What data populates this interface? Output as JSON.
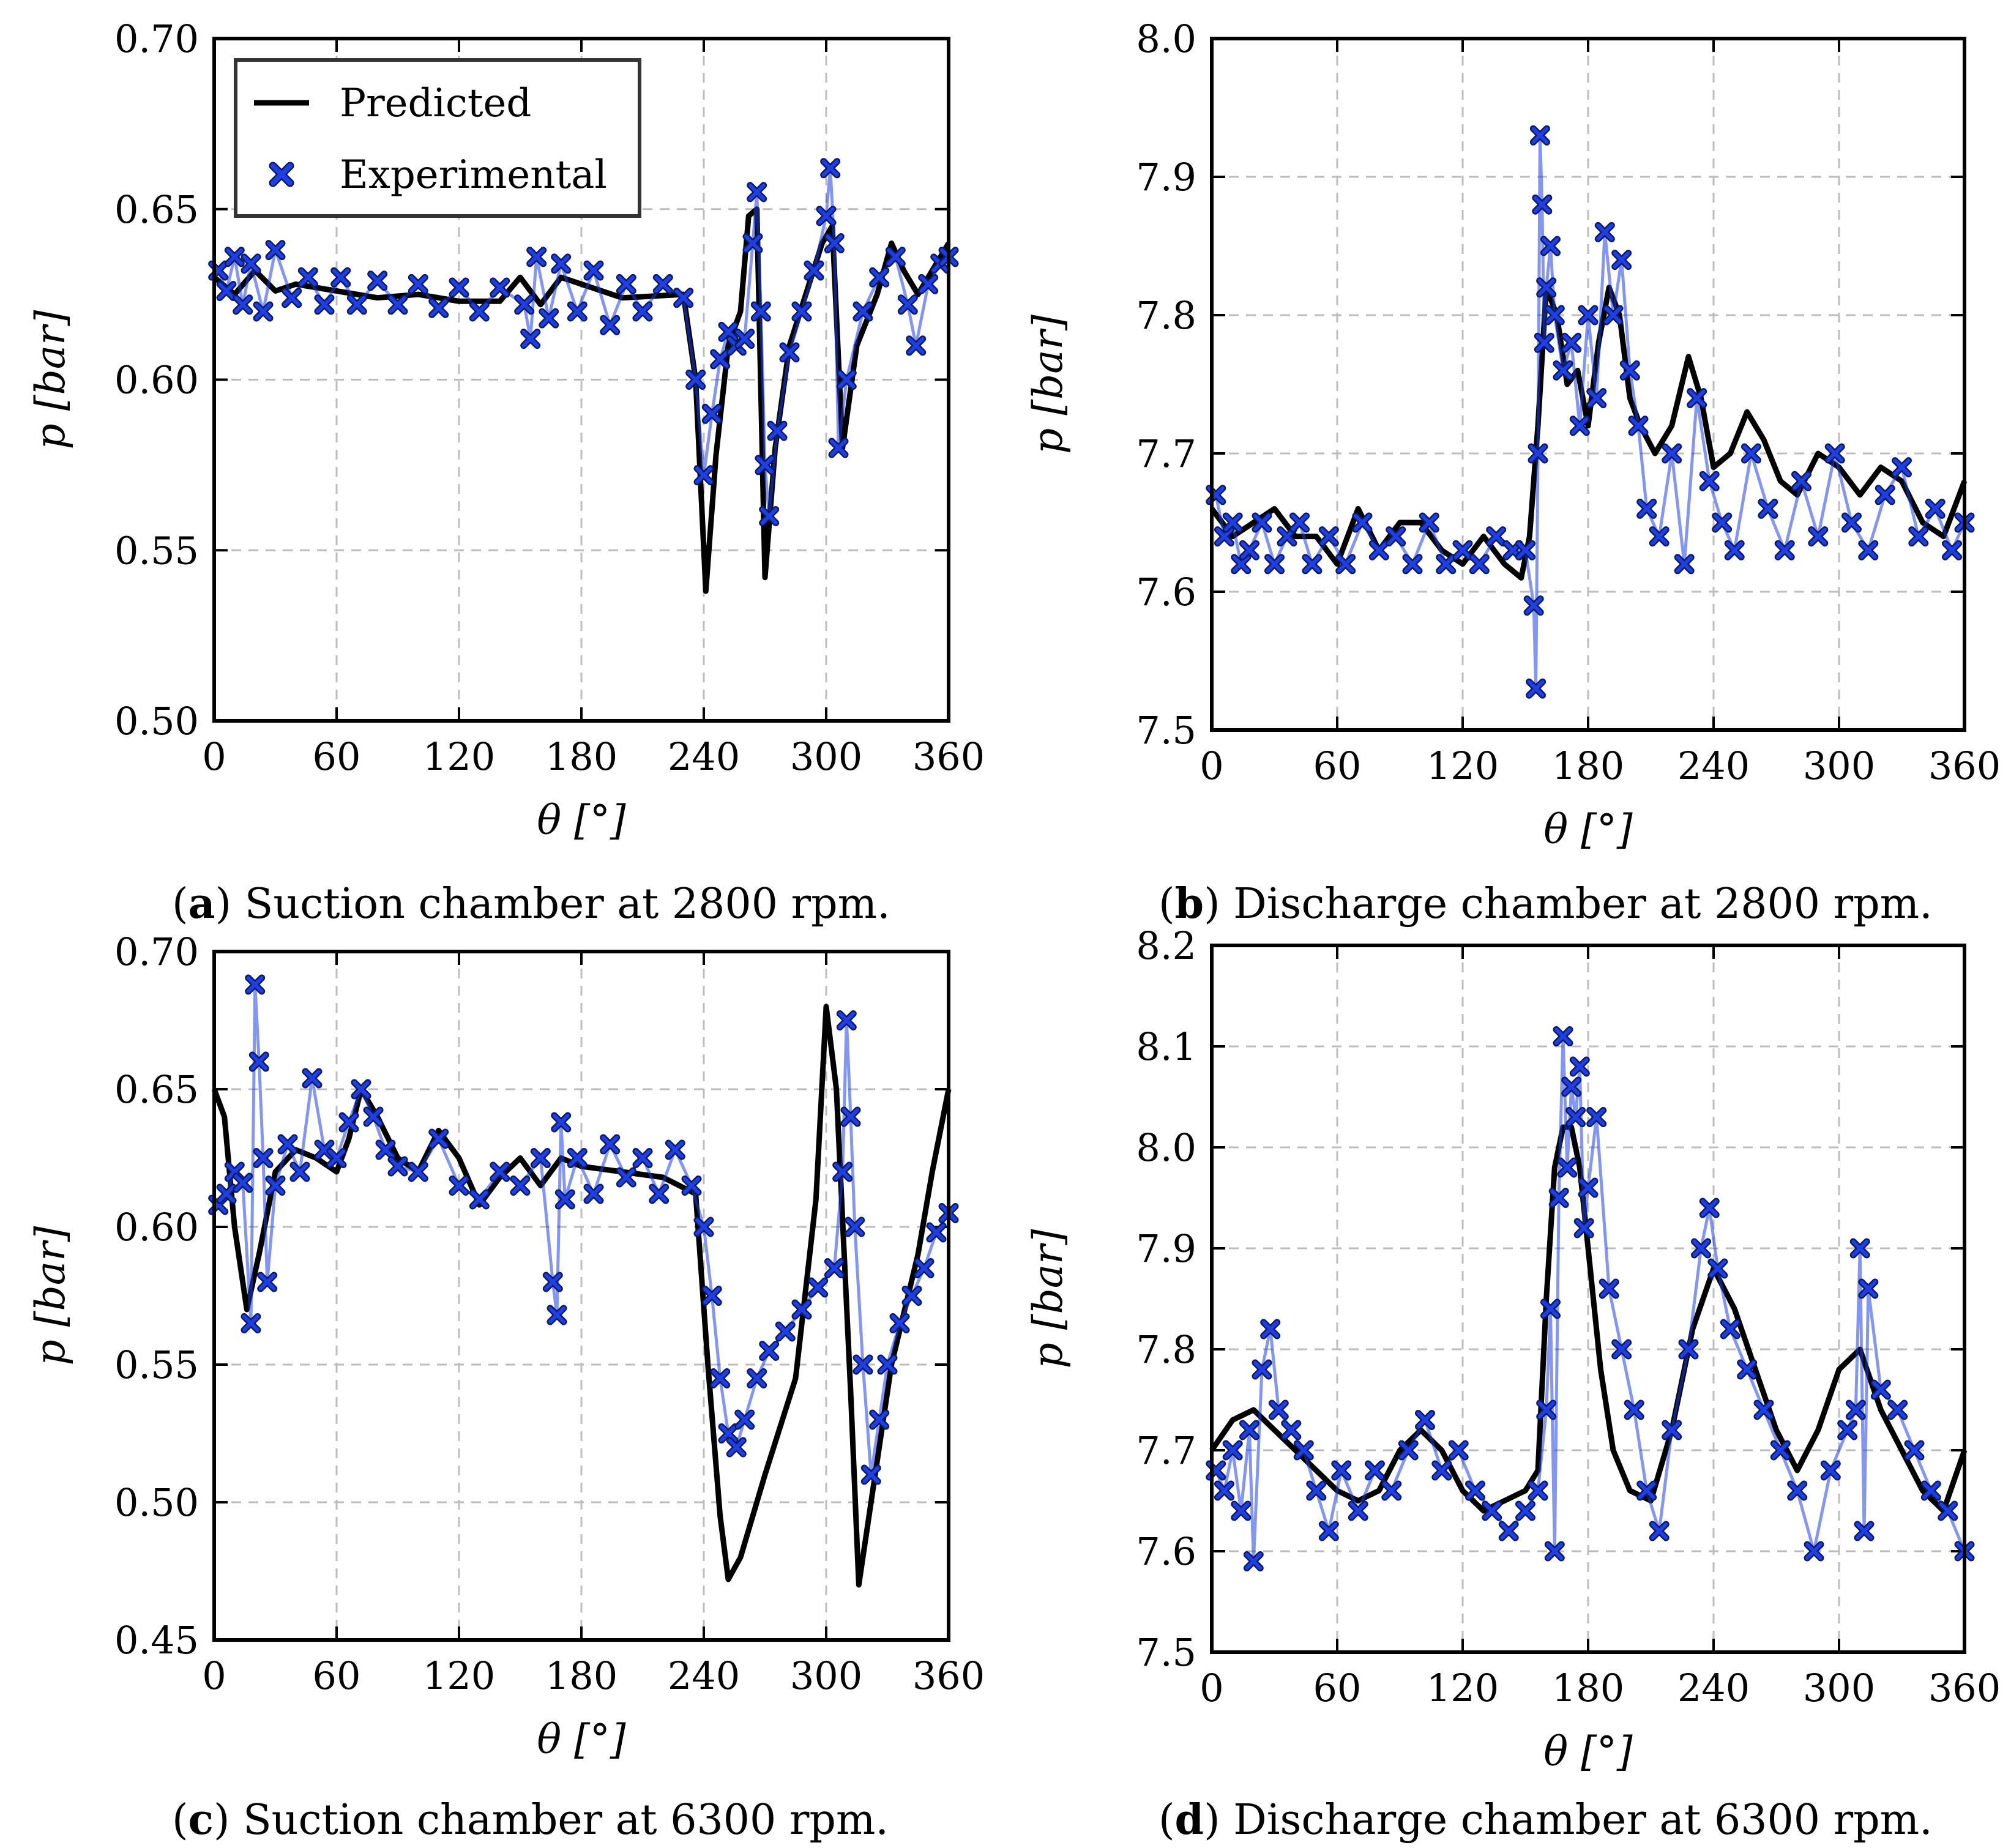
{
  "figure": {
    "legend": {
      "predicted_label": "Predicted",
      "experimental_label": "Experimental"
    },
    "colors": {
      "predicted": "#000000",
      "experimental": "#1f3fe0",
      "grid": "#bdbdbd"
    }
  },
  "chart_data": [
    {
      "id": "a",
      "type": "line",
      "panel_letter": "a",
      "caption_text": " Suction chamber at 2800 rpm.",
      "xlabel": "θ [°]",
      "ylabel": "p [bar]",
      "xlim": [
        0,
        360
      ],
      "ylim": [
        0.5,
        0.7
      ],
      "xticks": [
        "0",
        "60",
        "120",
        "180",
        "240",
        "300",
        "360"
      ],
      "yticks": [
        "0.50",
        "0.55",
        "0.60",
        "0.65",
        "0.70"
      ],
      "legend_position": "top-left",
      "series": [
        {
          "name": "Predicted",
          "style": "line",
          "x": [
            0,
            10,
            20,
            30,
            40,
            60,
            80,
            100,
            120,
            140,
            150,
            160,
            170,
            200,
            230,
            236,
            241,
            246,
            252,
            258,
            262,
            266,
            270,
            275,
            282,
            290,
            298,
            303,
            308,
            315,
            325,
            332,
            338,
            345,
            352,
            360
          ],
          "y": [
            0.63,
            0.625,
            0.632,
            0.626,
            0.628,
            0.626,
            0.624,
            0.625,
            0.623,
            0.623,
            0.63,
            0.622,
            0.63,
            0.624,
            0.625,
            0.6,
            0.538,
            0.578,
            0.61,
            0.62,
            0.648,
            0.65,
            0.542,
            0.58,
            0.61,
            0.625,
            0.64,
            0.645,
            0.58,
            0.61,
            0.625,
            0.64,
            0.632,
            0.625,
            0.632,
            0.64
          ]
        },
        {
          "name": "Experimental",
          "style": "x-markers",
          "x": [
            2,
            6,
            10,
            14,
            18,
            24,
            30,
            38,
            46,
            54,
            62,
            70,
            80,
            90,
            100,
            110,
            120,
            130,
            140,
            152,
            155,
            158,
            164,
            170,
            178,
            186,
            194,
            202,
            210,
            220,
            230,
            236,
            240,
            244,
            248,
            252,
            256,
            260,
            264,
            266,
            268,
            270,
            272,
            276,
            282,
            288,
            294,
            300,
            302,
            304,
            306,
            310,
            318,
            326,
            334,
            340,
            344,
            350,
            356,
            360
          ],
          "y": [
            0.632,
            0.626,
            0.636,
            0.622,
            0.634,
            0.62,
            0.638,
            0.624,
            0.63,
            0.622,
            0.63,
            0.622,
            0.629,
            0.622,
            0.628,
            0.621,
            0.627,
            0.62,
            0.627,
            0.622,
            0.612,
            0.636,
            0.618,
            0.634,
            0.62,
            0.632,
            0.616,
            0.628,
            0.62,
            0.628,
            0.624,
            0.6,
            0.572,
            0.59,
            0.606,
            0.614,
            0.61,
            0.612,
            0.64,
            0.655,
            0.62,
            0.575,
            0.56,
            0.585,
            0.608,
            0.62,
            0.632,
            0.648,
            0.662,
            0.64,
            0.58,
            0.6,
            0.62,
            0.63,
            0.636,
            0.622,
            0.61,
            0.628,
            0.634,
            0.636
          ]
        }
      ]
    },
    {
      "id": "b",
      "type": "line",
      "panel_letter": "b",
      "caption_text": " Discharge chamber at 2800 rpm.",
      "xlabel": "θ [°]",
      "ylabel": "p [bar]",
      "xlim": [
        0,
        360
      ],
      "ylim": [
        7.5,
        8.0
      ],
      "xticks": [
        "0",
        "60",
        "120",
        "180",
        "240",
        "300",
        "360"
      ],
      "yticks": [
        "7.5",
        "7.6",
        "7.7",
        "7.8",
        "7.9",
        "8.0"
      ],
      "legend_position": "none",
      "series": [
        {
          "name": "Predicted",
          "style": "line",
          "x": [
            0,
            10,
            20,
            30,
            40,
            50,
            60,
            70,
            80,
            90,
            100,
            110,
            120,
            130,
            140,
            148,
            152,
            156,
            160,
            165,
            170,
            175,
            180,
            185,
            190,
            195,
            200,
            205,
            212,
            220,
            228,
            234,
            240,
            248,
            256,
            264,
            272,
            280,
            290,
            300,
            310,
            320,
            330,
            340,
            350,
            360
          ],
          "y": [
            7.66,
            7.64,
            7.65,
            7.66,
            7.64,
            7.64,
            7.62,
            7.66,
            7.63,
            7.65,
            7.65,
            7.63,
            7.62,
            7.64,
            7.62,
            7.61,
            7.64,
            7.72,
            7.82,
            7.8,
            7.75,
            7.76,
            7.72,
            7.78,
            7.82,
            7.8,
            7.74,
            7.72,
            7.7,
            7.72,
            7.77,
            7.74,
            7.69,
            7.7,
            7.73,
            7.71,
            7.68,
            7.67,
            7.7,
            7.69,
            7.67,
            7.69,
            7.68,
            7.65,
            7.64,
            7.68
          ]
        },
        {
          "name": "Experimental",
          "style": "x-markers",
          "x": [
            2,
            6,
            10,
            14,
            18,
            24,
            30,
            36,
            42,
            48,
            56,
            64,
            72,
            80,
            88,
            96,
            104,
            112,
            120,
            128,
            136,
            144,
            150,
            154,
            155,
            156,
            157,
            158,
            159,
            160,
            162,
            164,
            168,
            172,
            176,
            180,
            184,
            188,
            192,
            196,
            200,
            204,
            208,
            214,
            220,
            226,
            232,
            238,
            244,
            250,
            258,
            266,
            274,
            282,
            290,
            298,
            306,
            314,
            322,
            330,
            338,
            346,
            354,
            360
          ],
          "y": [
            7.67,
            7.64,
            7.65,
            7.62,
            7.63,
            7.65,
            7.62,
            7.64,
            7.65,
            7.62,
            7.64,
            7.62,
            7.65,
            7.63,
            7.64,
            7.62,
            7.65,
            7.62,
            7.63,
            7.62,
            7.64,
            7.63,
            7.63,
            7.59,
            7.53,
            7.7,
            7.93,
            7.88,
            7.78,
            7.82,
            7.85,
            7.8,
            7.76,
            7.78,
            7.72,
            7.8,
            7.74,
            7.86,
            7.8,
            7.84,
            7.76,
            7.72,
            7.66,
            7.64,
            7.7,
            7.62,
            7.74,
            7.68,
            7.65,
            7.63,
            7.7,
            7.66,
            7.63,
            7.68,
            7.64,
            7.7,
            7.65,
            7.63,
            7.67,
            7.69,
            7.64,
            7.66,
            7.63,
            7.65
          ]
        }
      ]
    },
    {
      "id": "c",
      "type": "line",
      "panel_letter": "c",
      "caption_text": " Suction chamber at 6300 rpm.",
      "xlabel": "θ [°]",
      "ylabel": "p [bar]",
      "xlim": [
        0,
        360
      ],
      "ylim": [
        0.45,
        0.7
      ],
      "xticks": [
        "0",
        "60",
        "120",
        "180",
        "240",
        "300",
        "360"
      ],
      "yticks": [
        "0.45",
        "0.50",
        "0.55",
        "0.60",
        "0.65",
        "0.70"
      ],
      "legend_position": "none",
      "series": [
        {
          "name": "Predicted",
          "style": "line",
          "x": [
            0,
            5,
            10,
            16,
            22,
            30,
            40,
            50,
            60,
            66,
            72,
            80,
            90,
            100,
            110,
            120,
            130,
            140,
            150,
            160,
            170,
            180,
            200,
            220,
            236,
            242,
            248,
            252,
            258,
            270,
            285,
            295,
            300,
            305,
            312,
            316,
            322,
            332,
            345,
            352,
            360
          ],
          "y": [
            0.65,
            0.64,
            0.6,
            0.57,
            0.59,
            0.62,
            0.628,
            0.625,
            0.62,
            0.632,
            0.65,
            0.64,
            0.625,
            0.62,
            0.635,
            0.625,
            0.608,
            0.618,
            0.625,
            0.615,
            0.625,
            0.622,
            0.62,
            0.618,
            0.612,
            0.55,
            0.495,
            0.472,
            0.48,
            0.51,
            0.545,
            0.61,
            0.68,
            0.65,
            0.54,
            0.47,
            0.5,
            0.55,
            0.59,
            0.62,
            0.65
          ]
        },
        {
          "name": "Experimental",
          "style": "x-markers",
          "x": [
            2,
            6,
            10,
            14,
            18,
            20,
            22,
            24,
            26,
            30,
            36,
            42,
            48,
            54,
            60,
            66,
            72,
            78,
            84,
            90,
            100,
            110,
            120,
            130,
            140,
            150,
            160,
            166,
            168,
            170,
            172,
            178,
            186,
            194,
            202,
            210,
            218,
            226,
            234,
            240,
            244,
            248,
            252,
            256,
            260,
            266,
            272,
            280,
            288,
            296,
            304,
            308,
            310,
            312,
            314,
            318,
            322,
            326,
            330,
            336,
            342,
            348,
            354,
            360
          ],
          "y": [
            0.608,
            0.612,
            0.62,
            0.616,
            0.565,
            0.688,
            0.66,
            0.625,
            0.58,
            0.615,
            0.63,
            0.62,
            0.654,
            0.628,
            0.625,
            0.638,
            0.65,
            0.64,
            0.628,
            0.622,
            0.62,
            0.632,
            0.615,
            0.61,
            0.62,
            0.615,
            0.625,
            0.58,
            0.568,
            0.638,
            0.61,
            0.625,
            0.612,
            0.63,
            0.618,
            0.625,
            0.612,
            0.628,
            0.615,
            0.6,
            0.575,
            0.545,
            0.525,
            0.52,
            0.53,
            0.545,
            0.555,
            0.562,
            0.57,
            0.578,
            0.585,
            0.62,
            0.675,
            0.64,
            0.6,
            0.55,
            0.51,
            0.53,
            0.55,
            0.565,
            0.575,
            0.585,
            0.598,
            0.605
          ]
        }
      ]
    },
    {
      "id": "d",
      "type": "line",
      "panel_letter": "d",
      "caption_text": " Discharge chamber at 6300 rpm.",
      "xlabel": "θ [°]",
      "ylabel": "p [bar]",
      "xlim": [
        0,
        360
      ],
      "ylim": [
        7.5,
        8.2
      ],
      "xticks": [
        "0",
        "60",
        "120",
        "180",
        "240",
        "300",
        "360"
      ],
      "yticks": [
        "7.5",
        "7.6",
        "7.7",
        "7.8",
        "7.9",
        "8.0",
        "8.1",
        "8.2"
      ],
      "legend_position": "none",
      "series": [
        {
          "name": "Predicted",
          "style": "line",
          "x": [
            0,
            10,
            20,
            30,
            40,
            50,
            60,
            70,
            80,
            90,
            100,
            110,
            120,
            130,
            140,
            150,
            156,
            160,
            164,
            168,
            172,
            176,
            180,
            186,
            192,
            200,
            210,
            220,
            230,
            240,
            250,
            260,
            270,
            280,
            290,
            300,
            310,
            320,
            330,
            340,
            350,
            360
          ],
          "y": [
            7.7,
            7.73,
            7.74,
            7.72,
            7.7,
            7.68,
            7.66,
            7.65,
            7.66,
            7.7,
            7.72,
            7.7,
            7.66,
            7.64,
            7.65,
            7.66,
            7.68,
            7.85,
            7.98,
            8.02,
            8.02,
            7.98,
            7.9,
            7.78,
            7.7,
            7.66,
            7.65,
            7.72,
            7.82,
            7.88,
            7.84,
            7.78,
            7.72,
            7.68,
            7.72,
            7.78,
            7.8,
            7.74,
            7.7,
            7.66,
            7.64,
            7.7
          ]
        },
        {
          "name": "Experimental",
          "style": "x-markers",
          "x": [
            2,
            6,
            10,
            14,
            18,
            20,
            24,
            28,
            32,
            38,
            44,
            50,
            56,
            62,
            70,
            78,
            86,
            94,
            102,
            110,
            118,
            126,
            134,
            142,
            150,
            156,
            160,
            162,
            164,
            166,
            168,
            170,
            172,
            174,
            176,
            178,
            180,
            184,
            190,
            196,
            202,
            208,
            214,
            220,
            228,
            234,
            238,
            242,
            248,
            256,
            264,
            272,
            280,
            288,
            296,
            304,
            308,
            310,
            312,
            314,
            320,
            328,
            336,
            344,
            352,
            360
          ],
          "y": [
            7.68,
            7.66,
            7.7,
            7.64,
            7.72,
            7.59,
            7.78,
            7.82,
            7.74,
            7.72,
            7.7,
            7.66,
            7.62,
            7.68,
            7.64,
            7.68,
            7.66,
            7.7,
            7.73,
            7.68,
            7.7,
            7.66,
            7.64,
            7.62,
            7.64,
            7.66,
            7.74,
            7.84,
            7.6,
            7.95,
            8.11,
            7.98,
            8.06,
            8.03,
            8.08,
            7.92,
            7.96,
            8.03,
            7.86,
            7.8,
            7.74,
            7.66,
            7.62,
            7.72,
            7.8,
            7.9,
            7.94,
            7.88,
            7.82,
            7.78,
            7.74,
            7.7,
            7.66,
            7.6,
            7.68,
            7.72,
            7.74,
            7.9,
            7.62,
            7.86,
            7.76,
            7.74,
            7.7,
            7.66,
            7.64,
            7.6
          ]
        }
      ]
    }
  ]
}
